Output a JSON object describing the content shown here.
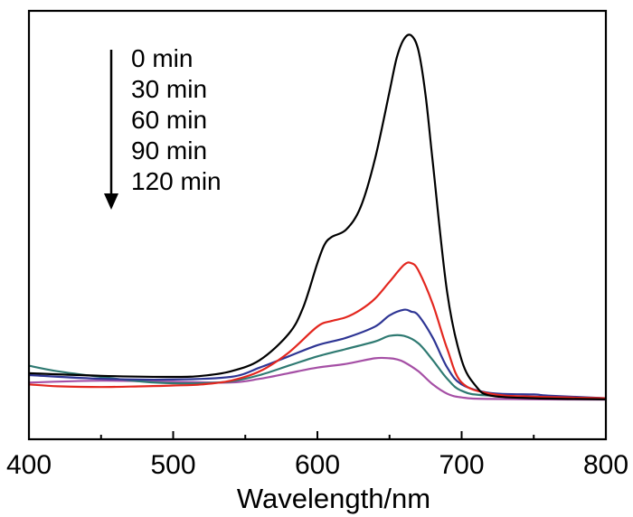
{
  "chart_data": {
    "type": "line",
    "title": "",
    "xlabel": "Wavelength/nm",
    "ylabel": "",
    "xlim": [
      400,
      800
    ],
    "ylim": [
      0,
      1.0
    ],
    "xticks": [
      400,
      500,
      600,
      700,
      800
    ],
    "xtick_labels": [
      "400",
      "500",
      "600",
      "700",
      "800"
    ],
    "yticks_shown": false,
    "grid": false,
    "legend": {
      "placement": "top-left",
      "arrow_direction": "down",
      "entries": [
        "0 min",
        "30 min",
        "60 min",
        "90 min",
        "120 min"
      ]
    },
    "series": [
      {
        "name": "0 min",
        "color": "#000000",
        "x": [
          400,
          450,
          500,
          520,
          540,
          560,
          580,
          590,
          600,
          605,
          610,
          620,
          630,
          640,
          650,
          655,
          660,
          665,
          670,
          675,
          680,
          690,
          700,
          710,
          720,
          750,
          800
        ],
        "y": [
          0.085,
          0.078,
          0.075,
          0.078,
          0.09,
          0.12,
          0.19,
          0.26,
          0.38,
          0.43,
          0.45,
          0.47,
          0.53,
          0.66,
          0.84,
          0.93,
          0.98,
          0.99,
          0.95,
          0.83,
          0.65,
          0.3,
          0.12,
          0.05,
          0.025,
          0.018,
          0.015
        ]
      },
      {
        "name": "30 min",
        "color": "#e3271f",
        "x": [
          400,
          420,
          450,
          480,
          500,
          520,
          540,
          560,
          580,
          600,
          610,
          620,
          630,
          640,
          650,
          660,
          665,
          670,
          680,
          690,
          700,
          720,
          750,
          800
        ],
        "y": [
          0.055,
          0.05,
          0.048,
          0.05,
          0.052,
          0.055,
          0.065,
          0.09,
          0.14,
          0.21,
          0.225,
          0.235,
          0.255,
          0.285,
          0.33,
          0.375,
          0.38,
          0.36,
          0.27,
          0.15,
          0.06,
          0.03,
          0.022,
          0.018
        ]
      },
      {
        "name": "60 min",
        "color": "#2e3594",
        "x": [
          400,
          450,
          500,
          540,
          560,
          580,
          600,
          620,
          640,
          650,
          660,
          665,
          670,
          680,
          690,
          700,
          720,
          750,
          760,
          800
        ],
        "y": [
          0.08,
          0.07,
          0.068,
          0.075,
          0.1,
          0.13,
          0.16,
          0.18,
          0.21,
          0.24,
          0.255,
          0.25,
          0.24,
          0.18,
          0.1,
          0.055,
          0.032,
          0.028,
          0.025,
          0.018
        ]
      },
      {
        "name": "90 min",
        "color": "#2f7a72",
        "x": [
          400,
          420,
          450,
          480,
          500,
          520,
          540,
          560,
          580,
          600,
          620,
          640,
          650,
          660,
          670,
          680,
          690,
          700,
          720,
          800
        ],
        "y": [
          0.105,
          0.09,
          0.075,
          0.062,
          0.058,
          0.058,
          0.063,
          0.08,
          0.105,
          0.13,
          0.15,
          0.17,
          0.185,
          0.185,
          0.165,
          0.12,
          0.07,
          0.038,
          0.025,
          0.018
        ]
      },
      {
        "name": "120 min",
        "color": "#a54fa5",
        "x": [
          400,
          450,
          500,
          540,
          560,
          580,
          600,
          620,
          640,
          650,
          655,
          660,
          670,
          680,
          690,
          700,
          720,
          800
        ],
        "y": [
          0.06,
          0.065,
          0.062,
          0.06,
          0.07,
          0.085,
          0.1,
          0.11,
          0.125,
          0.125,
          0.122,
          0.115,
          0.09,
          0.055,
          0.03,
          0.02,
          0.016,
          0.014
        ]
      }
    ]
  }
}
